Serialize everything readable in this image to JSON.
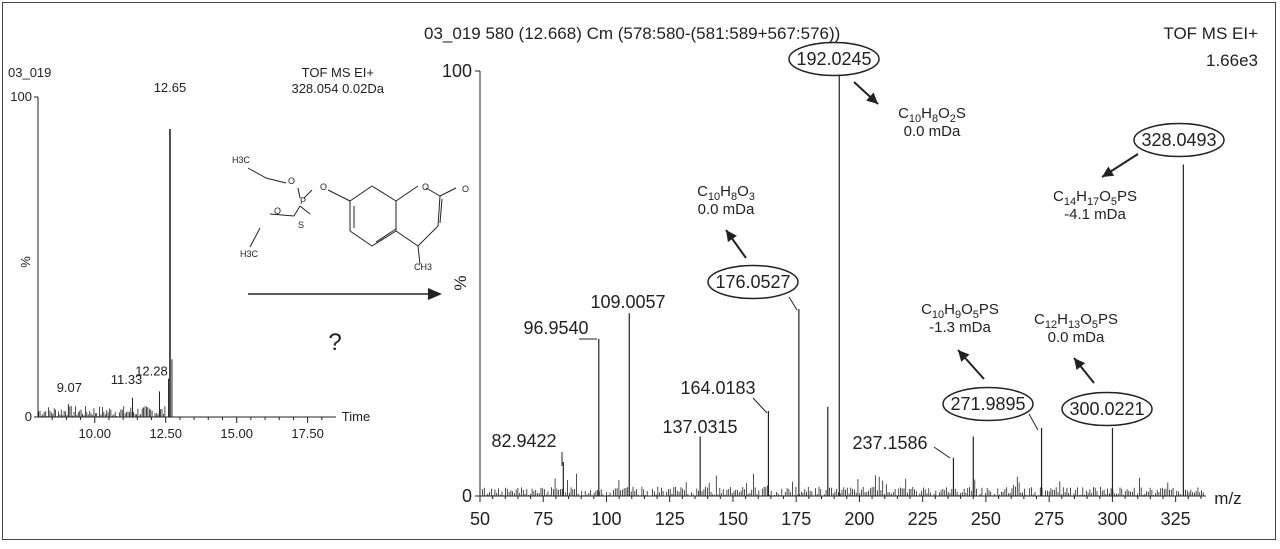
{
  "chart_data": [
    {
      "type": "line",
      "panel": "chromatogram",
      "title_left": "03_019",
      "title_right_1": "TOF MS EI+",
      "title_right_2": "328.054 0.02Da",
      "ylabel": "%",
      "xlabel": "Time",
      "xlim": [
        8.0,
        18.5
      ],
      "ylim": [
        0,
        100
      ],
      "x_ticks": [
        10.0,
        12.5,
        15.0,
        17.5
      ],
      "x_tick_labels": [
        "10.00",
        "12.50",
        "15.00",
        "17.50"
      ],
      "y_ticks": [
        0,
        100
      ],
      "y_tick_labels": [
        "0",
        "100"
      ],
      "peaks": [
        {
          "x": 9.07,
          "y": 4,
          "label": "9.07"
        },
        {
          "x": 11.33,
          "y": 6,
          "label": "11.33"
        },
        {
          "x": 12.28,
          "y": 8,
          "label": "12.28"
        },
        {
          "x": 12.65,
          "y": 90,
          "label": "12.65"
        }
      ],
      "extra_peaks": [
        {
          "x": 12.72,
          "y": 18
        },
        {
          "x": 12.6,
          "y": 12
        }
      ],
      "question_mark": "?"
    },
    {
      "type": "bar",
      "panel": "mass-spectrum",
      "title": "03_019 580 (12.668) Cm (578:580-(581:589+567:576))",
      "mode": "TOF MS EI+",
      "intensity": "1.66e3",
      "xlabel": "m/z",
      "ylabel": "%",
      "xlim": [
        50,
        337
      ],
      "ylim": [
        0,
        100
      ],
      "x_ticks": [
        50,
        75,
        100,
        125,
        150,
        175,
        200,
        225,
        250,
        275,
        300,
        325
      ],
      "y_ticks": [
        0,
        100
      ],
      "y_tick_labels": [
        "0",
        "100"
      ],
      "peaks": [
        {
          "mz": 82.9422,
          "y": 8,
          "label": "82.9422"
        },
        {
          "mz": 96.954,
          "y": 37,
          "label": "96.9540"
        },
        {
          "mz": 109.0057,
          "y": 43,
          "label": "109.0057"
        },
        {
          "mz": 137.0315,
          "y": 14,
          "label": "137.0315"
        },
        {
          "mz": 164.0183,
          "y": 20,
          "label": "164.0183"
        },
        {
          "mz": 176.0527,
          "y": 44,
          "label": "176.0527",
          "circled": true
        },
        {
          "mz": 187.5,
          "y": 21
        },
        {
          "mz": 192.0245,
          "y": 100,
          "label": "192.0245",
          "circled": true
        },
        {
          "mz": 237.1586,
          "y": 9,
          "label": "237.1586"
        },
        {
          "mz": 245.0,
          "y": 14
        },
        {
          "mz": 271.9895,
          "y": 16,
          "label": "271.9895",
          "circled": true
        },
        {
          "mz": 300.0221,
          "y": 16,
          "label": "300.0221",
          "circled": true
        },
        {
          "mz": 328.0493,
          "y": 78,
          "label": "328.0493",
          "circled": true
        }
      ],
      "annotations": [
        {
          "formula": "C10H8O2S",
          "parts": [
            [
              "C",
              ""
            ],
            [
              "10",
              "sub"
            ],
            [
              "H",
              ""
            ],
            [
              "8",
              "sub"
            ],
            [
              "O",
              ""
            ],
            [
              "2",
              "sub"
            ],
            [
              "S",
              ""
            ]
          ],
          "delta": "0.0 mDa"
        },
        {
          "formula": "C10H8O3",
          "parts": [
            [
              "C",
              ""
            ],
            [
              "10",
              "sub"
            ],
            [
              "H",
              ""
            ],
            [
              "8",
              "sub"
            ],
            [
              "O",
              ""
            ],
            [
              "3",
              "sub"
            ]
          ],
          "delta": "0.0 mDa"
        },
        {
          "formula": "C14H17O5PS",
          "parts": [
            [
              "C",
              ""
            ],
            [
              "14",
              "sub"
            ],
            [
              "H",
              ""
            ],
            [
              "17",
              "sub"
            ],
            [
              "O",
              ""
            ],
            [
              "5",
              "sub"
            ],
            [
              "PS",
              ""
            ]
          ],
          "delta": "-4.1 mDa"
        },
        {
          "formula": "C10H9O5PS",
          "parts": [
            [
              "C",
              ""
            ],
            [
              "10",
              "sub"
            ],
            [
              "H",
              ""
            ],
            [
              "9",
              "sub"
            ],
            [
              "O",
              ""
            ],
            [
              "5",
              "sub"
            ],
            [
              "PS",
              ""
            ]
          ],
          "delta": "-1.3 mDa"
        },
        {
          "formula": "C12H13O5PS",
          "parts": [
            [
              "C",
              ""
            ],
            [
              "12",
              "sub"
            ],
            [
              "H",
              ""
            ],
            [
              "13",
              "sub"
            ],
            [
              "O",
              ""
            ],
            [
              "5",
              "sub"
            ],
            [
              "PS",
              ""
            ]
          ],
          "delta": "0.0 mDa"
        }
      ]
    }
  ],
  "structure": {
    "labels": [
      "H3C",
      "H3C",
      "CH3",
      "O",
      "O",
      "O",
      "P",
      "S",
      "O",
      "O"
    ]
  },
  "colors": {
    "ink": "#222222",
    "frame": "#444444",
    "background": "#ffffff"
  }
}
